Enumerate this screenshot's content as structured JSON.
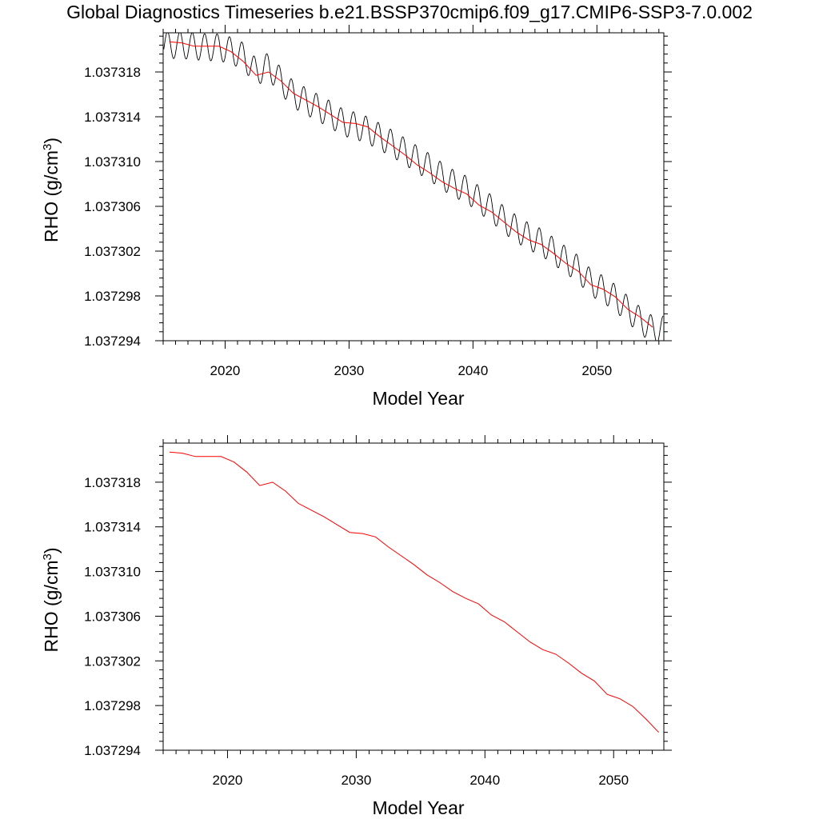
{
  "title": "Global Diagnostics Timeseries b.e21.BSSP370cmip6.f09_g17.CMIP6-SSP3-7.0.002",
  "colors": {
    "monthly": "#000000",
    "annual": "#ff0000"
  },
  "chart_data": [
    {
      "type": "line",
      "xlabel": "Model Year",
      "ylabel_main": "RHO (g/cm",
      "ylabel_sup": "3",
      "ylabel_close": ")",
      "xlim": [
        2015,
        2055.4
      ],
      "ylim": [
        1.037294,
        1.0373215
      ],
      "xticks": [
        2020,
        2030,
        2040,
        2050
      ],
      "xtick_labels": [
        "2020",
        "2030",
        "2040",
        "2050"
      ],
      "yticks": [
        1.037294,
        1.037298,
        1.037302,
        1.037306,
        1.03731,
        1.037314,
        1.037318
      ],
      "ytick_labels": [
        "1.037294",
        "1.037298",
        "1.037302",
        "1.037306",
        "1.037310",
        "1.037314",
        "1.037318"
      ],
      "series": [
        {
          "style": "monthly",
          "seasonal_amplitude": 1.2e-06,
          "x": [
            2015.5,
            2016.5,
            2017.5,
            2018.5,
            2019.5,
            2020.5,
            2021.5,
            2022.5,
            2023.5,
            2024.5,
            2025.5,
            2026.5,
            2027.5,
            2028.5,
            2029.5,
            2030.5,
            2031.5,
            2032.5,
            2033.5,
            2034.5,
            2035.5,
            2036.5,
            2037.5,
            2038.5,
            2039.5,
            2040.5,
            2041.5,
            2042.5,
            2043.5,
            2044.5,
            2045.5,
            2046.5,
            2047.5,
            2048.5,
            2049.5,
            2050.5,
            2051.5,
            2052.5,
            2053.5,
            2054.5
          ],
          "values": [
            1.0373204,
            1.0373204,
            1.0373203,
            1.0373202,
            1.0373202,
            1.0373199,
            1.0373194,
            1.037318,
            1.0373185,
            1.0373172,
            1.037316,
            1.0373154,
            1.0373148,
            1.0373142,
            1.0373135,
            1.0373132,
            1.0373128,
            1.0373122,
            1.0373116,
            1.0373109,
            1.0373102,
            1.0373095,
            1.0373087,
            1.037308,
            1.0373075,
            1.0373066,
            1.0373058,
            1.0373048,
            1.037304,
            1.0373033,
            1.0373028,
            1.037302,
            1.0373012,
            1.0373004,
            1.0372992,
            1.0372986,
            1.0372978,
            1.0372968,
            1.0372958,
            1.037295
          ]
        },
        {
          "style": "annual",
          "x": [
            2015.5,
            2016.5,
            2017.5,
            2018.5,
            2019.5,
            2020.5,
            2021.5,
            2022.5,
            2023.5,
            2024.5,
            2025.5,
            2026.5,
            2027.5,
            2028.5,
            2029.5,
            2030.5,
            2031.5,
            2032.5,
            2033.5,
            2034.5,
            2035.5,
            2036.5,
            2037.5,
            2038.5,
            2039.5,
            2040.5,
            2041.5,
            2042.5,
            2043.5,
            2044.5,
            2045.5,
            2046.5,
            2047.5,
            2048.5,
            2049.5,
            2050.5,
            2051.5,
            2052.5,
            2053.5,
            2054.5
          ],
          "values": [
            1.0373207,
            1.0373206,
            1.0373203,
            1.0373203,
            1.0373203,
            1.0373198,
            1.0373189,
            1.0373177,
            1.037318,
            1.0373172,
            1.0373161,
            1.0373155,
            1.0373149,
            1.0373142,
            1.0373135,
            1.0373134,
            1.0373131,
            1.0373122,
            1.0373114,
            1.0373106,
            1.0373097,
            1.037309,
            1.0373082,
            1.0373076,
            1.0373071,
            1.0373061,
            1.0373055,
            1.0373046,
            1.0373037,
            1.037303,
            1.0373026,
            1.0373018,
            1.0373009,
            1.0373002,
            1.037299,
            1.0372986,
            1.0372979,
            1.0372968,
            1.0372961,
            1.0372952
          ]
        }
      ]
    },
    {
      "type": "line",
      "xlabel": "Model Year",
      "ylabel_main": "RHO (g/cm",
      "ylabel_sup": "3",
      "ylabel_close": ")",
      "xlim": [
        2015,
        2053.9
      ],
      "ylim": [
        1.037294,
        1.0373215
      ],
      "xticks": [
        2020,
        2030,
        2040,
        2050
      ],
      "xtick_labels": [
        "2020",
        "2030",
        "2040",
        "2050"
      ],
      "yticks": [
        1.037294,
        1.037298,
        1.037302,
        1.037306,
        1.03731,
        1.037314,
        1.037318
      ],
      "ytick_labels": [
        "1.037294",
        "1.037298",
        "1.037302",
        "1.037306",
        "1.037310",
        "1.037314",
        "1.037318"
      ],
      "series": [
        {
          "style": "annual",
          "x": [
            2015.5,
            2016.5,
            2017.5,
            2018.5,
            2019.5,
            2020.5,
            2021.5,
            2022.5,
            2023.5,
            2024.5,
            2025.5,
            2026.5,
            2027.5,
            2028.5,
            2029.5,
            2030.5,
            2031.5,
            2032.5,
            2033.5,
            2034.5,
            2035.5,
            2036.5,
            2037.5,
            2038.5,
            2039.5,
            2040.5,
            2041.5,
            2042.5,
            2043.5,
            2044.5,
            2045.5,
            2046.5,
            2047.5,
            2048.5,
            2049.5,
            2050.5,
            2051.5,
            2052.5,
            2053.5
          ],
          "values": [
            1.0373207,
            1.0373206,
            1.0373203,
            1.0373203,
            1.0373203,
            1.0373198,
            1.0373189,
            1.0373177,
            1.037318,
            1.0373172,
            1.0373161,
            1.0373155,
            1.0373149,
            1.0373142,
            1.0373135,
            1.0373134,
            1.0373131,
            1.0373122,
            1.0373114,
            1.0373106,
            1.0373097,
            1.037309,
            1.0373082,
            1.0373076,
            1.0373071,
            1.0373061,
            1.0373055,
            1.0373046,
            1.0373037,
            1.037303,
            1.0373026,
            1.0373018,
            1.0373009,
            1.0373002,
            1.037299,
            1.0372986,
            1.0372979,
            1.0372968,
            1.0372956
          ]
        }
      ]
    }
  ]
}
